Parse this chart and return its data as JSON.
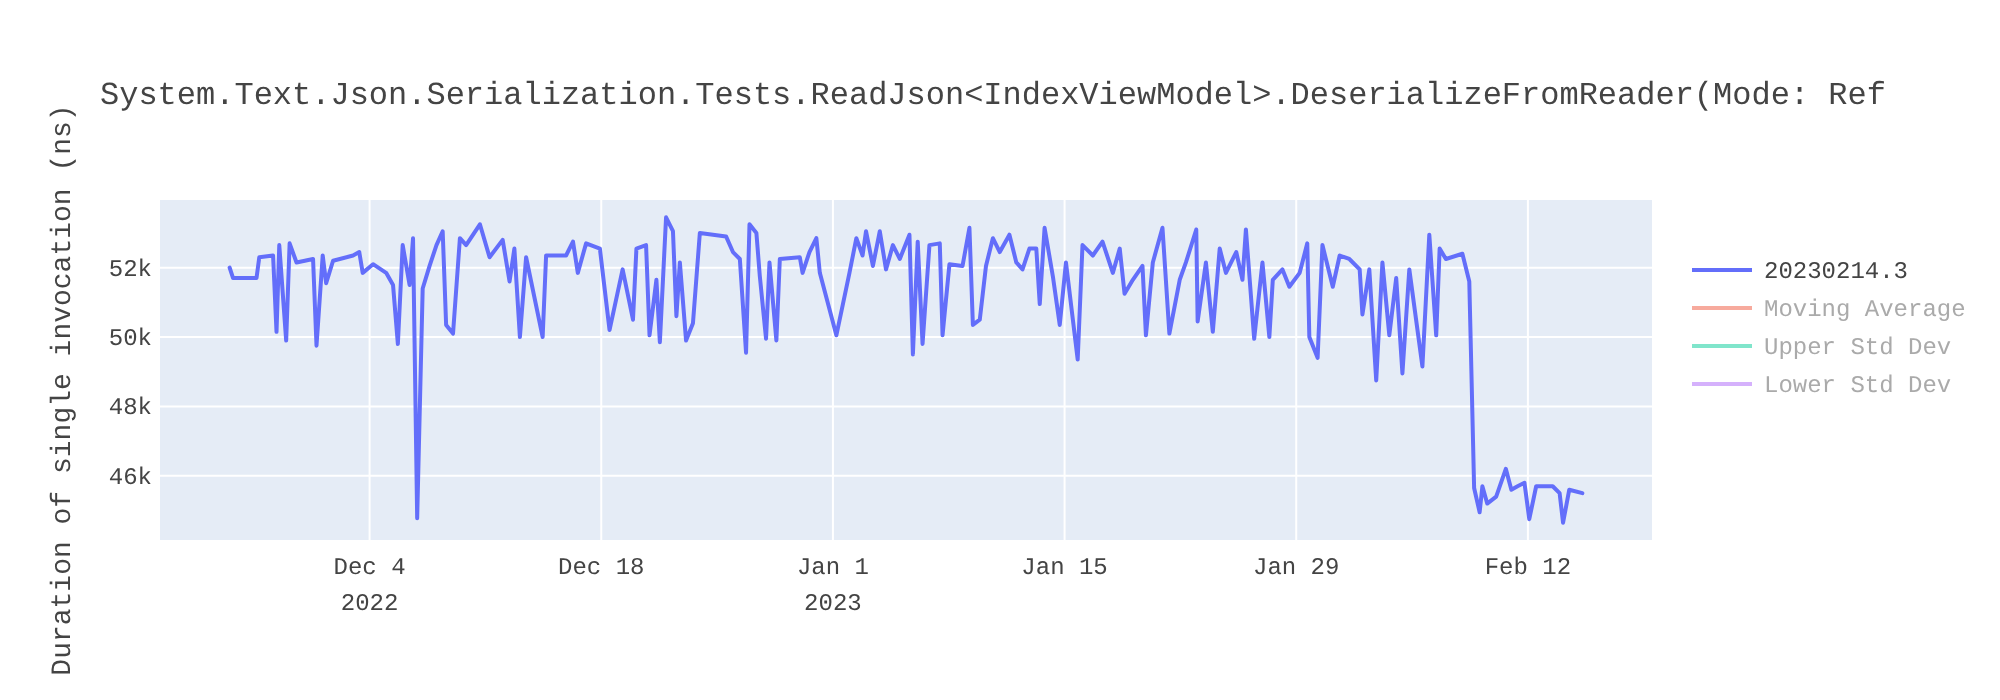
{
  "chart_data": {
    "type": "line",
    "title": "System.Text.Json.Serialization.Tests.ReadJson<IndexViewModel>.DeserializeFromReader(Mode: Ref",
    "ylabel": "Duration of single invocation (ns)",
    "xlim": [
      "2022-11-21T08:00",
      "2023-02-19T12:00"
    ],
    "xticks": [
      {
        "value": "2022-12-04",
        "label": "Dec 4\n2022"
      },
      {
        "value": "2022-12-18",
        "label": "Dec 18"
      },
      {
        "value": "2023-01-01",
        "label": "Jan 1\n2023"
      },
      {
        "value": "2023-01-15",
        "label": "Jan 15"
      },
      {
        "value": "2023-01-29",
        "label": "Jan 29"
      },
      {
        "value": "2023-02-12",
        "label": "Feb 12"
      }
    ],
    "ylim": [
      44150,
      53950
    ],
    "yticks": [
      {
        "value": 46000,
        "label": "46k"
      },
      {
        "value": 48000,
        "label": "48k"
      },
      {
        "value": 50000,
        "label": "50k"
      },
      {
        "value": 52000,
        "label": "52k"
      }
    ],
    "grid": true,
    "legend": "top right",
    "x": [
      "2022-11-25T13:00",
      "2022-11-25T18:00",
      "2022-11-27T04:00",
      "2022-11-27T08:00",
      "2022-11-28T04:00",
      "2022-11-28T09:00",
      "2022-11-28T13:00",
      "2022-11-28T23:00",
      "2022-11-29T04:00",
      "2022-11-29T14:00",
      "2022-11-30T14:00",
      "2022-11-30T19:00",
      "2022-12-01T04:00",
      "2022-12-01T09:00",
      "2022-12-01T19:00",
      "2022-12-03T00:00",
      "2022-12-03T09:00",
      "2022-12-03T14:00",
      "2022-12-04T05:00",
      "2022-12-05T00:00",
      "2022-12-05T10:00",
      "2022-12-05T17:00",
      "2022-12-06T00:00",
      "2022-12-06T10:00",
      "2022-12-06T15:00",
      "2022-12-06T21:00",
      "2022-12-07T05:00",
      "2022-12-07T15:00",
      "2022-12-08T01:00",
      "2022-12-08T10:00",
      "2022-12-08T15:00",
      "2022-12-09T01:00",
      "2022-12-09T11:00",
      "2022-12-09T20:00",
      "2022-12-10T16:00",
      "2022-12-11T06:00",
      "2022-12-12T01:00",
      "2022-12-12T11:00",
      "2022-12-12T18:00",
      "2022-12-13T02:00",
      "2022-12-13T11:00",
      "2022-12-14T11:00",
      "2022-12-14T16:00",
      "2022-12-15T21:00",
      "2022-12-16T07:00",
      "2022-12-16T14:00",
      "2022-12-17T02:00",
      "2022-12-17T22:00",
      "2022-12-18T12:00",
      "2022-12-19T07:00",
      "2022-12-19T22:00",
      "2022-12-20T03:00",
      "2022-12-20T17:00",
      "2022-12-20T22:00",
      "2022-12-21T08:00",
      "2022-12-21T13:00",
      "2022-12-21T22:00",
      "2022-12-22T08:00",
      "2022-12-22T13:00",
      "2022-12-22T18:00",
      "2022-12-23T03:00",
      "2022-12-23T13:00",
      "2022-12-23T23:00",
      "2022-12-25T13:00",
      "2022-12-25T23:00",
      "2022-12-26T09:00",
      "2022-12-26T18:00",
      "2022-12-26T23:00",
      "2022-12-27T09:00",
      "2022-12-27T14:00",
      "2022-12-27T23:00",
      "2022-12-28T04:00",
      "2022-12-28T14:00",
      "2022-12-28T19:00",
      "2022-12-30T00:00",
      "2022-12-30T04:00",
      "2022-12-30T14:00",
      "2022-12-31T00:00",
      "2022-12-31T05:00",
      "2023-01-01T05:00",
      "2023-01-02T00:00",
      "2023-01-02T10:00",
      "2023-01-02T19:00",
      "2023-01-03T00:00",
      "2023-01-03T10:00",
      "2023-01-03T20:00",
      "2023-01-04T05:00",
      "2023-01-04T15:00",
      "2023-01-05T01:00",
      "2023-01-05T15:00",
      "2023-01-05T20:00",
      "2023-01-06T03:00",
      "2023-01-06T10:00",
      "2023-01-06T20:00",
      "2023-01-07T11:00",
      "2023-01-07T15:00",
      "2023-01-08T01:00",
      "2023-01-08T20:00",
      "2023-01-09T06:00",
      "2023-01-09T11:00",
      "2023-01-09T21:00",
      "2023-01-10T06:00",
      "2023-01-10T16:00",
      "2023-01-11T02:00",
      "2023-01-11T16:00",
      "2023-01-12T02:00",
      "2023-01-12T11:00",
      "2023-01-12T21:00",
      "2023-01-13T07:00",
      "2023-01-13T12:00",
      "2023-01-13T19:00",
      "2023-01-14T07:00",
      "2023-01-14T17:00",
      "2023-01-15T02:00",
      "2023-01-15T19:00",
      "2023-01-16T02:00",
      "2023-01-16T17:00",
      "2023-01-17T07:00",
      "2023-01-17T22:00",
      "2023-01-18T08:00",
      "2023-01-18T15:00",
      "2023-01-19T03:00",
      "2023-01-19T17:00",
      "2023-01-19T22:00",
      "2023-01-20T08:00",
      "2023-01-20T22:00",
      "2023-01-21T08:00",
      "2023-01-21T23:00",
      "2023-01-22T08:00",
      "2023-01-22T23:00",
      "2023-01-23T01:00",
      "2023-01-23T13:00",
      "2023-01-23T23:00",
      "2023-01-24T09:00",
      "2023-01-24T18:00",
      "2023-01-25T09:00",
      "2023-01-25T18:00",
      "2023-01-25T23:00",
      "2023-01-26T11:00",
      "2023-01-26T23:00",
      "2023-01-27T09:00",
      "2023-01-27T14:00",
      "2023-01-28T04:00",
      "2023-01-28T14:00",
      "2023-01-29T05:00",
      "2023-01-29T16:00",
      "2023-01-29T19:00",
      "2023-01-30T07:00",
      "2023-01-30T14:00",
      "2023-01-31T05:00",
      "2023-01-31T15:00",
      "2023-02-01T05:00",
      "2023-02-01T20:00",
      "2023-02-02T00:00",
      "2023-02-02T10:00",
      "2023-02-02T20:00",
      "2023-02-03T05:00",
      "2023-02-03T15:00",
      "2023-02-04T01:00",
      "2023-02-04T10:00",
      "2023-02-04T20:00",
      "2023-02-05T15:00",
      "2023-02-06T01:00",
      "2023-02-06T11:00",
      "2023-02-06T16:00",
      "2023-02-07T01:00",
      "2023-02-08T01:00",
      "2023-02-08T11:00",
      "2023-02-08T18:00",
      "2023-02-09T02:00",
      "2023-02-09T06:00",
      "2023-02-09T13:00",
      "2023-02-10T02:00",
      "2023-02-10T16:00",
      "2023-02-11T00:00",
      "2023-02-11T09:00",
      "2023-02-11T19:00",
      "2023-02-12T02:00",
      "2023-02-12T12:00",
      "2023-02-13T12:00",
      "2023-02-13T22:00",
      "2023-02-14T03:00",
      "2023-02-14T12:00",
      "2023-02-15T07:00"
    ],
    "series": [
      {
        "name": "20230214.3",
        "color": "#636efa",
        "values": [
          52000,
          51700,
          51700,
          52300,
          52350,
          50150,
          52650,
          49900,
          52700,
          52150,
          52250,
          49750,
          52350,
          51550,
          52200,
          52350,
          52450,
          51850,
          52100,
          51850,
          51500,
          49800,
          52650,
          51500,
          52850,
          44780,
          51400,
          52050,
          52650,
          53050,
          50350,
          50100,
          52850,
          52650,
          53250,
          52300,
          52800,
          51600,
          52550,
          50000,
          52300,
          50000,
          52350,
          52350,
          52750,
          51850,
          52700,
          52550,
          50200,
          51950,
          50500,
          52550,
          52650,
          50050,
          51650,
          49850,
          53450,
          53050,
          50600,
          52150,
          49900,
          50400,
          53000,
          52900,
          52450,
          52250,
          49550,
          53250,
          53000,
          51750,
          49950,
          52150,
          49900,
          52250,
          52300,
          51850,
          52450,
          52850,
          51850,
          50050,
          51850,
          52850,
          52350,
          53050,
          52050,
          53050,
          51950,
          52650,
          52250,
          52950,
          49500,
          52750,
          49800,
          52650,
          52700,
          50050,
          52100,
          52050,
          53150,
          50350,
          50500,
          52050,
          52850,
          52450,
          52950,
          52150,
          51950,
          52550,
          52550,
          50950,
          53150,
          51750,
          50350,
          52150,
          49350,
          52650,
          52350,
          52750,
          51850,
          52550,
          51250,
          51650,
          52050,
          50050,
          52150,
          53150,
          50100,
          51650,
          52150,
          53100,
          50450,
          52150,
          50150,
          52550,
          51850,
          52450,
          51650,
          53100,
          49950,
          52150,
          50000,
          51650,
          51950,
          51450,
          51850,
          52700,
          50000,
          49400,
          52650,
          51450,
          52350,
          52250,
          51950,
          50650,
          51950,
          48750,
          52150,
          50050,
          51700,
          48950,
          51950,
          49150,
          52950,
          50050,
          52550,
          52250,
          52400,
          51600,
          45650,
          44950,
          45700,
          45200,
          45400,
          46200,
          45600,
          45700,
          45800,
          44750,
          45700,
          45700,
          45500,
          44650,
          45600,
          45500
        ]
      },
      {
        "name": "Moving Average",
        "color": "#f7aa9d",
        "values": [
          null,
          null,
          null,
          null,
          null,
          null,
          null,
          null,
          null,
          null,
          null,
          null,
          null,
          null,
          null,
          null,
          null,
          null,
          null,
          null,
          null,
          null,
          null,
          null,
          null,
          null,
          null,
          null,
          null,
          null,
          null,
          null,
          null,
          null,
          null,
          null,
          null,
          null,
          null,
          null,
          null,
          null,
          null,
          null,
          null,
          null,
          null,
          null,
          null,
          null,
          null,
          null,
          null,
          null,
          null,
          null,
          null,
          null,
          null,
          null,
          null,
          null,
          null,
          null,
          null,
          null,
          null,
          null,
          null,
          null,
          null,
          null,
          null,
          null,
          null,
          null,
          null,
          null,
          null,
          null,
          null,
          null,
          null,
          null,
          null,
          null,
          null,
          null,
          null,
          null,
          null,
          null,
          null,
          null,
          null,
          null,
          null,
          null,
          null,
          null,
          null,
          null,
          null,
          null,
          null,
          null,
          null,
          null,
          null,
          null,
          null,
          null,
          null,
          null,
          null,
          null,
          null,
          null,
          null,
          null,
          null,
          null,
          null,
          null,
          null,
          null,
          null,
          null,
          null,
          null,
          null,
          null,
          null,
          null,
          null,
          null,
          null,
          null,
          null,
          null,
          null,
          null,
          null,
          null,
          null,
          null,
          null,
          null,
          null,
          null,
          null,
          null,
          null,
          null,
          null,
          null,
          null,
          null,
          null,
          null,
          null,
          null,
          null,
          null,
          null,
          null,
          null,
          null,
          null,
          null,
          null,
          null,
          null,
          null,
          null,
          null,
          null,
          null,
          null,
          null,
          null,
          null,
          null,
          null
        ]
      },
      {
        "name": "Upper Std Dev",
        "color": "#80e5cb",
        "values": [
          null,
          null,
          null,
          null,
          null,
          null,
          null,
          null,
          null,
          null,
          null,
          null,
          null,
          null,
          null,
          null,
          null,
          null,
          null,
          null,
          null,
          null,
          null,
          null,
          null,
          null,
          null,
          null,
          null,
          null,
          null,
          null,
          null,
          null,
          null,
          null,
          null,
          null,
          null,
          null,
          null,
          null,
          null,
          null,
          null,
          null,
          null,
          null,
          null,
          null,
          null,
          null,
          null,
          null,
          null,
          null,
          null,
          null,
          null,
          null,
          null,
          null,
          null,
          null,
          null,
          null,
          null,
          null,
          null,
          null,
          null,
          null,
          null,
          null,
          null,
          null,
          null,
          null,
          null,
          null,
          null,
          null,
          null,
          null,
          null,
          null,
          null,
          null,
          null,
          null,
          null,
          null,
          null,
          null,
          null,
          null,
          null,
          null,
          null,
          null,
          null,
          null,
          null,
          null,
          null,
          null,
          null,
          null,
          null,
          null,
          null,
          null,
          null,
          null,
          null,
          null,
          null,
          null,
          null,
          null,
          null,
          null,
          null,
          null,
          null,
          null,
          null,
          null,
          null,
          null,
          null,
          null,
          null,
          null,
          null,
          null,
          null,
          null,
          null,
          null,
          null,
          null,
          null,
          null,
          null,
          null,
          null,
          null,
          null,
          null,
          null,
          null,
          null,
          null,
          null,
          null,
          null,
          null,
          null,
          null,
          null,
          null,
          null,
          null,
          null,
          null,
          null,
          null,
          null,
          null,
          null,
          null,
          null,
          null,
          null,
          null,
          null,
          null,
          null,
          null,
          null,
          null,
          null,
          null
        ]
      },
      {
        "name": "Lower Std Dev",
        "color": "#d5b1fc",
        "values": [
          null,
          null,
          null,
          null,
          null,
          null,
          null,
          null,
          null,
          null,
          null,
          null,
          null,
          null,
          null,
          null,
          null,
          null,
          null,
          null,
          null,
          null,
          null,
          null,
          null,
          null,
          null,
          null,
          null,
          null,
          null,
          null,
          null,
          null,
          null,
          null,
          null,
          null,
          null,
          null,
          null,
          null,
          null,
          null,
          null,
          null,
          null,
          null,
          null,
          null,
          null,
          null,
          null,
          null,
          null,
          null,
          null,
          null,
          null,
          null,
          null,
          null,
          null,
          null,
          null,
          null,
          null,
          null,
          null,
          null,
          null,
          null,
          null,
          null,
          null,
          null,
          null,
          null,
          null,
          null,
          null,
          null,
          null,
          null,
          null,
          null,
          null,
          null,
          null,
          null,
          null,
          null,
          null,
          null,
          null,
          null,
          null,
          null,
          null,
          null,
          null,
          null,
          null,
          null,
          null,
          null,
          null,
          null,
          null,
          null,
          null,
          null,
          null,
          null,
          null,
          null,
          null,
          null,
          null,
          null,
          null,
          null,
          null,
          null,
          null,
          null,
          null,
          null,
          null,
          null,
          null,
          null,
          null,
          null,
          null,
          null,
          null,
          null,
          null,
          null,
          null,
          null,
          null,
          null,
          null,
          null,
          null,
          null,
          null,
          null,
          null,
          null,
          null,
          null,
          null,
          null,
          null,
          null,
          null,
          null,
          null,
          null,
          null,
          null,
          null,
          null,
          null,
          null,
          null,
          null,
          null,
          null,
          null,
          null,
          null,
          null,
          null,
          null,
          null,
          null,
          null,
          null,
          null,
          null
        ]
      }
    ]
  }
}
